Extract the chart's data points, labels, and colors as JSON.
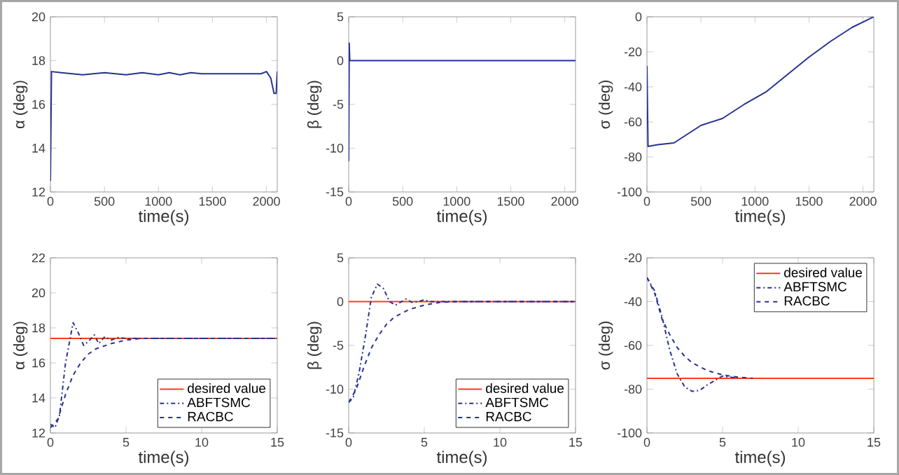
{
  "chart_data": [
    {
      "type": "line",
      "xlabel": "time(s)",
      "ylabel": "α (deg)",
      "xlim": [
        0,
        2100
      ],
      "ylim": [
        12,
        20
      ],
      "xticks": [
        0,
        500,
        1000,
        1500,
        2000
      ],
      "yticks": [
        12,
        14,
        16,
        18,
        20
      ],
      "legend": false,
      "series": [
        {
          "color": "#27338f",
          "line_style": "solid",
          "x": [
            0,
            10,
            100,
            300,
            500,
            700,
            850,
            1000,
            1100,
            1200,
            1300,
            1400,
            1700,
            1950,
            2000,
            2040,
            2070,
            2090,
            2100
          ],
          "values": [
            12.5,
            17.5,
            17.45,
            17.35,
            17.45,
            17.35,
            17.45,
            17.35,
            17.45,
            17.35,
            17.45,
            17.4,
            17.4,
            17.4,
            17.5,
            17.2,
            16.5,
            16.5,
            17.5
          ]
        }
      ]
    },
    {
      "type": "line",
      "xlabel": "time(s)",
      "ylabel": "β (deg)",
      "xlim": [
        0,
        2100
      ],
      "ylim": [
        -15,
        5
      ],
      "xticks": [
        0,
        500,
        1000,
        1500,
        2000
      ],
      "yticks": [
        -15,
        -10,
        -5,
        0,
        5
      ],
      "legend": false,
      "series": [
        {
          "color": "#27338f",
          "line_style": "solid",
          "x": [
            0,
            5,
            10,
            2100
          ],
          "values": [
            -11.5,
            2,
            0,
            0
          ]
        }
      ]
    },
    {
      "type": "line",
      "xlabel": "time(s)",
      "ylabel": "σ (deg)",
      "xlim": [
        0,
        2100
      ],
      "ylim": [
        -100,
        0
      ],
      "xticks": [
        0,
        500,
        1000,
        1500,
        2000
      ],
      "yticks": [
        -100,
        -80,
        -60,
        -40,
        -20,
        0
      ],
      "legend": false,
      "series": [
        {
          "color": "#27338f",
          "line_style": "solid",
          "x": [
            0,
            10,
            100,
            250,
            350,
            500,
            700,
            900,
            1100,
            1300,
            1500,
            1700,
            1900,
            2100
          ],
          "values": [
            -28,
            -74,
            -73,
            -72,
            -68,
            -62,
            -58,
            -50,
            -43,
            -33,
            -23,
            -14,
            -6,
            0
          ]
        }
      ]
    },
    {
      "type": "line",
      "xlabel": "time(s)",
      "ylabel": "α (deg)",
      "xlim": [
        0,
        15
      ],
      "ylim": [
        12,
        22
      ],
      "xticks": [
        0,
        5,
        10,
        15
      ],
      "yticks": [
        12,
        14,
        16,
        18,
        20,
        22
      ],
      "legend": "bottom right",
      "series": [
        {
          "name": "desired value",
          "color": "#ff3b1f",
          "line_style": "solid",
          "x": [
            0,
            15
          ],
          "values": [
            17.4,
            17.4
          ]
        },
        {
          "name": "ABFTSMC",
          "color": "#27338f",
          "line_style": "dashdot",
          "x": [
            0,
            0.3,
            0.6,
            1.0,
            1.5,
            1.8,
            2.2,
            2.6,
            2.9,
            3.2,
            3.6,
            4,
            4.5,
            5,
            15
          ],
          "values": [
            12.5,
            12.3,
            13,
            16,
            18.3,
            17.8,
            17.0,
            17.3,
            17.6,
            17.1,
            17.5,
            17.3,
            17.45,
            17.4,
            17.4
          ]
        },
        {
          "name": "RACBC",
          "color": "#27338f",
          "line_style": "dashed",
          "x": [
            0,
            0.5,
            1,
            1.5,
            2,
            2.5,
            3,
            4,
            5,
            6,
            15
          ],
          "values": [
            12.3,
            12.8,
            14.2,
            15.3,
            16.0,
            16.5,
            16.8,
            17.1,
            17.3,
            17.4,
            17.4
          ]
        }
      ]
    },
    {
      "type": "line",
      "xlabel": "time(s)",
      "ylabel": "β (deg)",
      "xlim": [
        0,
        15
      ],
      "ylim": [
        -15,
        5
      ],
      "xticks": [
        0,
        5,
        10,
        15
      ],
      "yticks": [
        -15,
        -10,
        -5,
        0,
        5
      ],
      "legend": "bottom right",
      "series": [
        {
          "name": "desired value",
          "color": "#ff3b1f",
          "line_style": "solid",
          "x": [
            0,
            15
          ],
          "values": [
            0,
            0
          ]
        },
        {
          "name": "ABFTSMC",
          "color": "#27338f",
          "line_style": "dashdot",
          "x": [
            0,
            0.3,
            0.7,
            1.1,
            1.5,
            1.9,
            2.3,
            2.7,
            3.1,
            3.5,
            3.8,
            4.2,
            4.6,
            5,
            5.3,
            15
          ],
          "values": [
            -11.5,
            -11,
            -8,
            -4,
            0.5,
            2.0,
            1.5,
            0,
            -0.4,
            0,
            0.3,
            -0.1,
            0,
            0.2,
            0,
            0
          ]
        },
        {
          "name": "RACBC",
          "color": "#27338f",
          "line_style": "dashed",
          "x": [
            0,
            0.5,
            1,
            1.5,
            2,
            2.5,
            3,
            4,
            5,
            6,
            7,
            15
          ],
          "values": [
            -11.5,
            -10,
            -7.5,
            -5.3,
            -3.8,
            -2.6,
            -1.8,
            -0.9,
            -0.4,
            -0.1,
            0,
            0
          ]
        }
      ]
    },
    {
      "type": "line",
      "xlabel": "time(s)",
      "ylabel": "σ (deg)",
      "xlim": [
        0,
        15
      ],
      "ylim": [
        -100,
        -20
      ],
      "xticks": [
        0,
        5,
        10,
        15
      ],
      "yticks": [
        -100,
        -80,
        -60,
        -40,
        -20
      ],
      "legend": "top right",
      "series": [
        {
          "name": "desired value",
          "color": "#ff3b1f",
          "line_style": "solid",
          "x": [
            0,
            15
          ],
          "values": [
            -75,
            -75
          ]
        },
        {
          "name": "ABFTSMC",
          "color": "#27338f",
          "line_style": "dashdot",
          "x": [
            0,
            0.5,
            1,
            1.5,
            2,
            2.5,
            3,
            3.5,
            4,
            4.5,
            5,
            5.5,
            6
          ],
          "values": [
            -29,
            -35,
            -47,
            -62,
            -73,
            -79,
            -81,
            -80.5,
            -78,
            -76,
            -74,
            -74.5,
            -75
          ]
        },
        {
          "name": "RACBC",
          "color": "#27338f",
          "line_style": "dashed",
          "x": [
            0,
            0.5,
            1,
            1.5,
            2,
            2.5,
            3,
            4,
            5,
            6,
            7
          ],
          "values": [
            -29,
            -36,
            -48,
            -55,
            -61,
            -65,
            -68,
            -71.5,
            -73.5,
            -74.5,
            -75
          ]
        }
      ]
    }
  ]
}
